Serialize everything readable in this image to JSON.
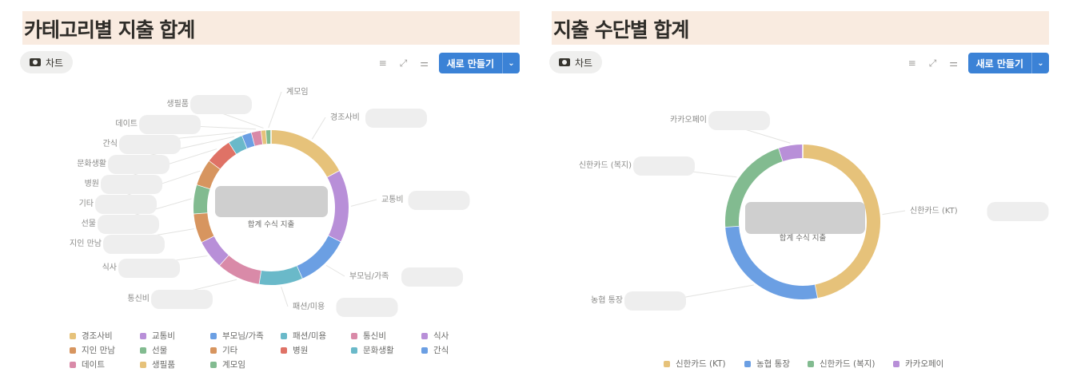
{
  "panels": [
    {
      "title": "카테고리별 지출 합계",
      "view_label": "차트",
      "new_button": "새로 만들기",
      "center_caption": "합계 수식 지출"
    },
    {
      "title": "지출 수단별 합계",
      "view_label": "차트",
      "new_button": "새로 만들기",
      "center_caption": "합계 수식 지출"
    }
  ],
  "icons": {
    "view": "chart-view-icon",
    "filter": "filter-icon",
    "expand": "expand-icon",
    "settings": "sliders-icon",
    "dropdown": "chevron-down-icon"
  },
  "chart_data": [
    {
      "type": "pie",
      "donut": true,
      "title": "카테고리별 지출 합계",
      "center_label": "합계 수식 지출",
      "legend": "bottom",
      "value_unit": "percent (estimated from arcs; labels blurred)",
      "categories": [
        "경조사비",
        "교통비",
        "부모님/가족",
        "패션/미용",
        "통신비",
        "식사",
        "지인 만남",
        "선물",
        "기타",
        "병원",
        "문화생활",
        "간식",
        "데이트",
        "생필품",
        "계모임"
      ],
      "values": [
        17,
        15,
        11,
        9,
        9,
        6,
        6,
        6,
        5.5,
        5.5,
        3,
        2,
        2,
        1,
        1
      ],
      "colors": [
        "#e6c27a",
        "#b88fd8",
        "#6b9fe3",
        "#6ab9c9",
        "#d98aa8",
        "#b88fd8",
        "#d7955f",
        "#82bb90",
        "#d7955f",
        "#df7266",
        "#6ab9c9",
        "#6b9fe3",
        "#d98aa8",
        "#e6c27a",
        "#82bb90"
      ]
    },
    {
      "type": "pie",
      "donut": true,
      "title": "지출 수단별 합계",
      "center_label": "합계 수식 지출",
      "legend": "bottom",
      "value_unit": "percent (estimated from arcs; labels blurred)",
      "categories": [
        "신한카드 (KT)",
        "농협 통장",
        "신한카드 (복지)",
        "카카오페이"
      ],
      "values": [
        47,
        27,
        21,
        5
      ],
      "colors": [
        "#e6c27a",
        "#6b9fe3",
        "#82bb90",
        "#b88fd8"
      ]
    }
  ]
}
